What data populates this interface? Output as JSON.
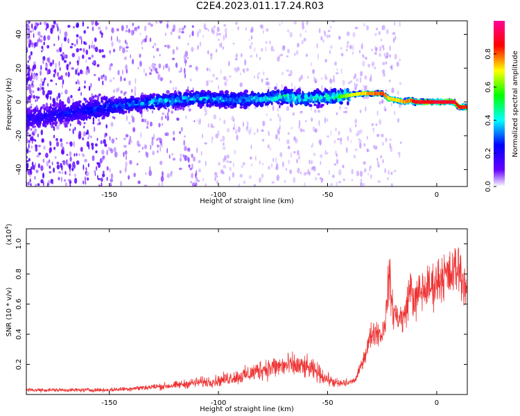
{
  "title": "C2E4.2023.011.17.24.R03",
  "chart_data": [
    {
      "type": "heatmap",
      "xlabel": "Height of straight line (km)",
      "ylabel": "Frequency (Hz)",
      "xlim": [
        -188,
        14
      ],
      "ylim": [
        -50,
        48
      ],
      "x_ticks": [
        -150,
        -100,
        -50,
        0
      ],
      "y_ticks": [
        -40,
        -20,
        0,
        20,
        40
      ],
      "grid": false,
      "colorbar": {
        "label": "Normalized spectral amplitude",
        "range": [
          0,
          1
        ],
        "ticks": [
          0.0,
          0.2,
          0.4,
          0.6,
          0.8
        ],
        "colors": [
          "#ffffff",
          "#6600ff",
          "#0000ff",
          "#00ffff",
          "#00ff00",
          "#ffff00",
          "#ff0000",
          "#ff0099"
        ]
      },
      "ridge": {
        "x": [
          -188,
          -160,
          -150,
          -130,
          -110,
          -90,
          -80,
          -70,
          -60,
          -50,
          -45,
          -40,
          -35,
          -30,
          -25,
          -22,
          -18,
          -15,
          -12,
          -10,
          -5,
          0,
          5,
          8,
          10,
          14
        ],
        "frequency": [
          -10,
          -5,
          -3,
          0,
          2,
          1,
          2,
          3,
          2,
          3,
          3,
          4,
          5,
          5,
          5,
          2,
          1,
          0,
          1,
          0,
          0,
          0,
          0,
          0,
          -3,
          -3
        ],
        "peak_amplitude": [
          0.25,
          0.3,
          0.35,
          0.45,
          0.45,
          0.45,
          0.5,
          0.55,
          0.55,
          0.55,
          0.6,
          0.7,
          0.75,
          0.8,
          0.85,
          0.75,
          0.75,
          0.8,
          0.85,
          0.9,
          0.92,
          0.95,
          0.95,
          0.95,
          0.9,
          0.85
        ]
      }
    },
    {
      "type": "line",
      "xlabel": "Height of straight line (km)",
      "ylabel": "SNR (10 * v/v)",
      "y_multiplier": "(x10",
      "y_multiplier_exp": "4",
      "y_multiplier_close": ")",
      "xlim": [
        -188,
        14
      ],
      "ylim": [
        0,
        1.1
      ],
      "x_ticks": [
        -150,
        -100,
        -50,
        0
      ],
      "y_ticks": [
        0.2,
        0.4,
        0.6,
        0.8,
        1.0
      ],
      "grid": false,
      "series": [
        {
          "color": "#ee3333",
          "x": [
            -188,
            -170,
            -150,
            -140,
            -130,
            -120,
            -110,
            -100,
            -95,
            -90,
            -85,
            -80,
            -75,
            -70,
            -65,
            -60,
            -55,
            -50,
            -45,
            -40,
            -37,
            -35,
            -32,
            -30,
            -28,
            -25,
            -23,
            -22,
            -20,
            -18,
            -15,
            -12,
            -10,
            -8,
            -5,
            -2,
            0,
            3,
            6,
            8,
            10,
            12,
            14
          ],
          "y": [
            0.03,
            0.03,
            0.03,
            0.04,
            0.05,
            0.06,
            0.08,
            0.09,
            0.11,
            0.12,
            0.14,
            0.17,
            0.18,
            0.19,
            0.19,
            0.18,
            0.15,
            0.1,
            0.07,
            0.08,
            0.1,
            0.18,
            0.3,
            0.4,
            0.42,
            0.4,
            0.55,
            0.8,
            0.55,
            0.52,
            0.5,
            0.72,
            0.6,
            0.68,
            0.7,
            0.72,
            0.75,
            0.8,
            0.78,
            0.82,
            0.85,
            0.76,
            0.7
          ]
        }
      ]
    }
  ]
}
